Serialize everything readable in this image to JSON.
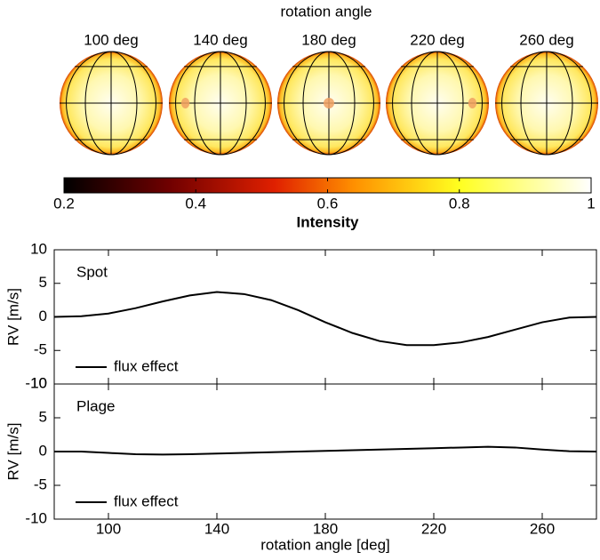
{
  "chart_data": [
    {
      "type": "disks",
      "title": "rotation angle",
      "categories": [
        "100 deg",
        "140 deg",
        "180 deg",
        "220 deg",
        "260 deg"
      ],
      "xlabel": "Intensity",
      "xlim": [
        0.2,
        1
      ],
      "xticks": [
        0.2,
        0.4,
        0.6,
        0.8,
        1
      ]
    },
    {
      "type": "line",
      "annotation": "Spot",
      "ylabel": "RV [m/s]",
      "x": [
        80,
        90,
        100,
        110,
        120,
        130,
        140,
        150,
        160,
        170,
        180,
        190,
        200,
        210,
        220,
        230,
        240,
        250,
        260,
        270,
        280
      ],
      "series": [
        {
          "name": "flux effect",
          "color": "#000000",
          "values": [
            0,
            0.1,
            0.5,
            1.3,
            2.3,
            3.2,
            3.7,
            3.4,
            2.5,
            1.0,
            -0.8,
            -2.4,
            -3.6,
            -4.2,
            -4.2,
            -3.8,
            -3.0,
            -1.9,
            -0.8,
            -0.1,
            0
          ]
        }
      ],
      "xlim": [
        80,
        280
      ],
      "xticks": [
        100,
        140,
        180,
        220,
        260
      ],
      "ylim": [
        -10,
        10
      ],
      "yticks": [
        -10,
        -5,
        0,
        5,
        10
      ]
    },
    {
      "type": "line",
      "annotation": "Plage",
      "ylabel": "RV [m/s]",
      "xlabel": "rotation angle [deg]",
      "x": [
        80,
        90,
        100,
        110,
        120,
        130,
        140,
        150,
        160,
        170,
        180,
        190,
        200,
        210,
        220,
        230,
        240,
        250,
        260,
        270,
        280
      ],
      "series": [
        {
          "name": "flux effect",
          "color": "#000000",
          "values": [
            0,
            0,
            -0.2,
            -0.4,
            -0.45,
            -0.4,
            -0.3,
            -0.2,
            -0.1,
            0,
            0.1,
            0.2,
            0.3,
            0.4,
            0.5,
            0.6,
            0.7,
            0.6,
            0.3,
            0.05,
            0
          ]
        }
      ],
      "xlim": [
        80,
        280
      ],
      "xticks": [
        100,
        140,
        180,
        220,
        260
      ],
      "ylim": [
        -10,
        10
      ],
      "yticks": [
        -10,
        -5,
        0,
        5,
        10
      ]
    }
  ]
}
